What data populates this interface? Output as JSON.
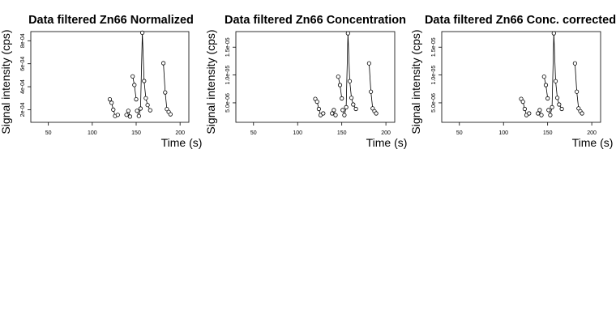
{
  "chart_data": [
    {
      "type": "line",
      "title": "Data filtered Zn66 Normalized",
      "xlabel": "Time (s)",
      "ylabel": "Signal intensity (cps)",
      "xlim": [
        30,
        210
      ],
      "ylim": [
        9e-05,
        0.00088
      ],
      "xticks": [
        50,
        100,
        150,
        200
      ],
      "xtick_labels": [
        "50",
        "100",
        "150",
        "200"
      ],
      "yticks": [
        0.0002,
        0.0004,
        0.0006,
        0.0008
      ],
      "ytick_labels": [
        "2e-04",
        "4e-04",
        "6e-04",
        "8e-04"
      ],
      "grid": false,
      "segments": [
        {
          "x": [
            120,
            122,
            124,
            126,
            129
          ],
          "y": [
            0.00029,
            0.00026,
            0.0002,
            0.000145,
            0.000155
          ]
        },
        {
          "x": [
            139,
            141,
            143
          ],
          "y": [
            0.000155,
            0.00019,
            0.00014
          ]
        },
        {
          "x": [
            146,
            148,
            150
          ],
          "y": [
            0.00049,
            0.000415,
            0.00029
          ]
        },
        {
          "x": [
            151,
            153,
            155,
            157,
            159,
            161,
            163,
            166
          ],
          "y": [
            0.00019,
            0.000145,
            0.00021,
            0.00087,
            0.00045,
            0.0003,
            0.00024,
            0.000195
          ]
        },
        {
          "x": [
            181,
            183,
            185,
            187,
            189
          ],
          "y": [
            0.000605,
            0.00035,
            0.000205,
            0.00018,
            0.00016
          ]
        }
      ]
    },
    {
      "type": "line",
      "title": "Data filtered Zn66 Concentration",
      "xlabel": "Time (s)",
      "ylabel": "Signal intensity (cps)",
      "xlim": [
        30,
        210
      ],
      "ylim": [
        1.5e-06,
        1.78e-05
      ],
      "xticks": [
        50,
        100,
        150,
        200
      ],
      "xtick_labels": [
        "50",
        "100",
        "150",
        "200"
      ],
      "yticks": [
        5e-06,
        1e-05,
        1.5e-05
      ],
      "ytick_labels": [
        "5.0e-06",
        "1.0e-05",
        "1.5e-05"
      ],
      "grid": false,
      "segments": [
        {
          "x": [
            120,
            122,
            124,
            126,
            129
          ],
          "y": [
            5.7e-06,
            5.2e-06,
            3.9e-06,
            2.8e-06,
            3.1e-06
          ]
        },
        {
          "x": [
            139,
            141,
            143
          ],
          "y": [
            3.1e-06,
            3.7e-06,
            2.8e-06
          ]
        },
        {
          "x": [
            146,
            148,
            150
          ],
          "y": [
            9.7e-06,
            8.2e-06,
            5.8e-06
          ]
        },
        {
          "x": [
            151,
            153,
            155,
            157,
            159,
            161,
            163,
            166
          ],
          "y": [
            3.7e-06,
            2.8e-06,
            4.2e-06,
            1.75e-05,
            8.9e-06,
            5.9e-06,
            4.7e-06,
            3.9e-06
          ]
        },
        {
          "x": [
            181,
            183,
            185,
            187,
            189
          ],
          "y": [
            1.21e-05,
            7e-06,
            4e-06,
            3.5e-06,
            3.1e-06
          ]
        }
      ]
    },
    {
      "type": "line",
      "title": "Data filtered Zn66 Conc. corrected",
      "xlabel": "Time (s)",
      "ylabel": "Signal intensity (cps)",
      "xlim": [
        30,
        210
      ],
      "ylim": [
        1.5e-06,
        1.78e-05
      ],
      "xticks": [
        50,
        100,
        150,
        200
      ],
      "xtick_labels": [
        "50",
        "100",
        "150",
        "200"
      ],
      "yticks": [
        5e-06,
        1e-05,
        1.5e-05
      ],
      "ytick_labels": [
        "5.0e-06",
        "1.0e-05",
        "1.5e-05"
      ],
      "grid": false,
      "segments": [
        {
          "x": [
            120,
            122,
            124,
            126,
            129
          ],
          "y": [
            5.7e-06,
            5.2e-06,
            3.9e-06,
            2.8e-06,
            3.1e-06
          ]
        },
        {
          "x": [
            139,
            141,
            143
          ],
          "y": [
            3.1e-06,
            3.7e-06,
            2.8e-06
          ]
        },
        {
          "x": [
            146,
            148,
            150
          ],
          "y": [
            9.7e-06,
            8.2e-06,
            5.8e-06
          ]
        },
        {
          "x": [
            151,
            153,
            155,
            157,
            159,
            161,
            163,
            166
          ],
          "y": [
            3.7e-06,
            2.8e-06,
            4.2e-06,
            1.75e-05,
            8.9e-06,
            5.9e-06,
            4.7e-06,
            3.9e-06
          ]
        },
        {
          "x": [
            181,
            183,
            185,
            187,
            189
          ],
          "y": [
            1.21e-05,
            7e-06,
            4e-06,
            3.5e-06,
            3.1e-06
          ]
        }
      ]
    }
  ]
}
